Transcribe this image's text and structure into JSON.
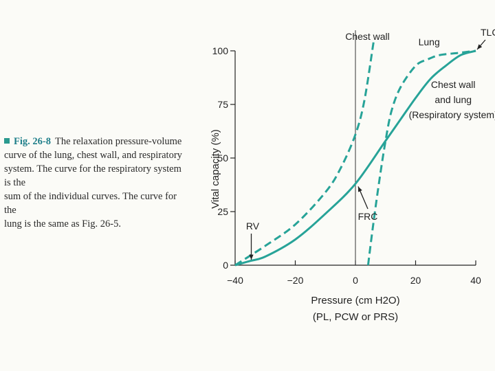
{
  "caption": {
    "label": "Fig. 26-8",
    "lines": [
      "The relaxation pressure-volume",
      "curve of the lung, chest wall, and respiratory",
      "system. The curve for the respiratory system is the",
      "sum of the individual curves. The curve for the",
      "lung is the same as Fig. 26-5."
    ]
  },
  "chart_data": {
    "type": "line",
    "title": "",
    "xlabel": "Pressure (cm H2O)",
    "xlabel_sub": "(PL, PCW or PRS)",
    "ylabel": "Vital capacity (%)",
    "xlim": [
      -40,
      40
    ],
    "ylim": [
      0,
      100
    ],
    "x_ticks": [
      "−40",
      "−20",
      "0",
      "20",
      "40"
    ],
    "x_tick_values": [
      -40,
      -20,
      0,
      20,
      40
    ],
    "y_ticks": [
      "0",
      "25",
      "50",
      "75",
      "100"
    ],
    "y_tick_values": [
      0,
      25,
      50,
      75,
      100
    ],
    "grid": false,
    "color": "#27a398",
    "series": [
      {
        "name": "Chest wall",
        "style": "dashed",
        "x": [
          -40,
          -30,
          -20,
          -10,
          -5,
          0,
          3,
          6
        ],
        "y": [
          0,
          9,
          19,
          34,
          45,
          61,
          77,
          104
        ]
      },
      {
        "name": "Lung",
        "style": "dashed",
        "x": [
          4.2,
          6,
          8,
          10,
          12,
          15,
          20,
          24,
          28,
          34,
          40
        ],
        "y": [
          0,
          20,
          40,
          58,
          72,
          83,
          93,
          96,
          98,
          99,
          100
        ]
      },
      {
        "name": "Chest wall and lung (Respiratory system)",
        "style": "solid",
        "x": [
          -40,
          -35,
          -30,
          -20,
          -10,
          0,
          10,
          15,
          20,
          25,
          30,
          35,
          40
        ],
        "y": [
          0,
          2,
          4,
          12,
          24,
          38,
          58,
          68,
          78,
          87,
          93,
          98,
          100
        ]
      }
    ],
    "annotations": [
      {
        "text": "TLC",
        "x": 40,
        "y": 100
      },
      {
        "text": "RV",
        "x": -36,
        "y": 0
      },
      {
        "text": "FRC",
        "x": 0,
        "y": 38
      }
    ],
    "legend_labels": {
      "chest_wall": "Chest wall",
      "lung": "Lung",
      "resp_line1": "Chest wall",
      "resp_line2": "and lung",
      "resp_line3": "(Respiratory system)"
    }
  }
}
